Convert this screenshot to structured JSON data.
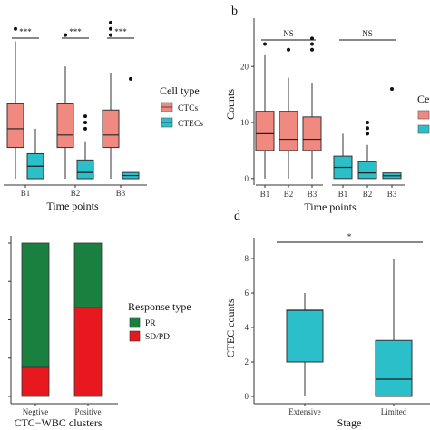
{
  "chart_data": [
    {
      "type": "boxplot",
      "panel": "a",
      "panel_label": "",
      "xlabel": "Time points",
      "ylabel": "",
      "categories": [
        "B1",
        "B2",
        "B3"
      ],
      "ylim": [
        0,
        26
      ],
      "colors": {
        "CTCs": "#f08a80",
        "CTECs": "#2bbfc9"
      },
      "legend": {
        "title": "Cell type",
        "items": [
          "CTCs",
          "CTECs"
        ],
        "placement": "right"
      },
      "series": [
        {
          "name": "CTCs",
          "boxes": [
            {
              "min": 0,
              "q1": 5,
              "median": 8,
              "q3": 12,
              "max": 22,
              "outliers": [
                24
              ]
            },
            {
              "min": 0,
              "q1": 5,
              "median": 7,
              "q3": 12,
              "max": 18,
              "outliers": [
                23
              ]
            },
            {
              "min": 0,
              "q1": 5,
              "median": 7,
              "q3": 11,
              "max": 17,
              "outliers": [
                23,
                24,
                25
              ]
            }
          ]
        },
        {
          "name": "CTECs",
          "boxes": [
            {
              "min": 0,
              "q1": 0,
              "median": 2,
              "q3": 4,
              "max": 8,
              "outliers": []
            },
            {
              "min": 0,
              "q1": 0,
              "median": 1,
              "q3": 3,
              "max": 6,
              "outliers": [
                8,
                9,
                10
              ]
            },
            {
              "min": 0,
              "q1": 0,
              "median": 0.5,
              "q3": 1,
              "max": 1,
              "outliers": [
                16
              ]
            }
          ]
        }
      ],
      "significance": [
        {
          "group": "B1",
          "label": "***"
        },
        {
          "group": "B2",
          "label": "***"
        },
        {
          "group": "B3",
          "label": "***"
        }
      ]
    },
    {
      "type": "boxplot",
      "panel": "b",
      "panel_label": "b",
      "xlabel": "Time points",
      "ylabel": "Counts",
      "yticks": [
        0,
        10,
        20
      ],
      "ylim": [
        -1,
        27
      ],
      "facets": [
        {
          "name": "CTCs",
          "categories": [
            "B1",
            "B2",
            "B3"
          ],
          "significance": "NS",
          "color": "#f08a80",
          "boxes": [
            {
              "min": 0,
              "q1": 5,
              "median": 8,
              "q3": 12,
              "max": 22,
              "outliers": [
                24
              ]
            },
            {
              "min": 0,
              "q1": 5,
              "median": 7,
              "q3": 12,
              "max": 18,
              "outliers": [
                23
              ]
            },
            {
              "min": 0,
              "q1": 5,
              "median": 7,
              "q3": 11,
              "max": 17,
              "outliers": [
                23,
                24,
                25
              ]
            }
          ]
        },
        {
          "name": "CTECs",
          "categories": [
            "B1",
            "B2",
            "B3"
          ],
          "significance": "NS",
          "color": "#2bbfc9",
          "boxes": [
            {
              "min": 0,
              "q1": 0,
              "median": 2,
              "q3": 4,
              "max": 8,
              "outliers": []
            },
            {
              "min": 0,
              "q1": 0,
              "median": 1,
              "q3": 3,
              "max": 6,
              "outliers": [
                8,
                9,
                10
              ]
            },
            {
              "min": 0,
              "q1": 0,
              "median": 0.5,
              "q3": 1,
              "max": 1,
              "outliers": [
                16
              ]
            }
          ]
        }
      ],
      "legend": {
        "title": "Ce",
        "colors": [
          "#f08a80",
          "#2bbfc9"
        ],
        "placement": "right (cropped)"
      }
    },
    {
      "type": "stacked-bar",
      "panel": "c",
      "xlabel": "CTC−WBC clusters",
      "categories": [
        "Negtive",
        "Positive"
      ],
      "series": [
        {
          "name": "PR",
          "color": "#1a8040",
          "values": [
            0.81,
            0.42
          ]
        },
        {
          "name": "SD/PD",
          "color": "#e8181f",
          "values": [
            0.19,
            0.58
          ]
        }
      ],
      "ylim": [
        0,
        1
      ],
      "legend": {
        "title": "Response type",
        "items": [
          "PR",
          "SD/PD"
        ],
        "placement": "right"
      }
    },
    {
      "type": "boxplot",
      "panel": "d",
      "panel_label": "d",
      "xlabel": "Stage",
      "ylabel": "CTEC counts",
      "categories": [
        "Extensive",
        "Limited"
      ],
      "yticks": [
        0,
        2,
        4,
        6,
        8
      ],
      "ylim": [
        -0.3,
        8.8
      ],
      "color": "#2bbfc9",
      "boxes": [
        {
          "min": 0,
          "q1": 2,
          "median": 5,
          "q3": 5,
          "max": 6,
          "outliers": []
        },
        {
          "min": 0,
          "q1": 0,
          "median": 1,
          "q3": 3.25,
          "max": 8,
          "outliers": []
        }
      ],
      "significance": "*"
    }
  ]
}
